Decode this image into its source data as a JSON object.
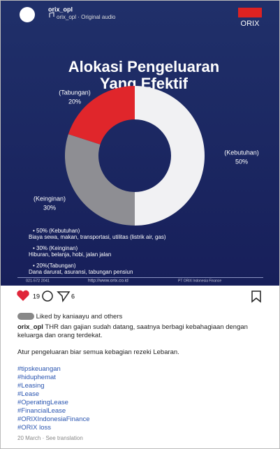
{
  "header": {
    "username": "orix_opl",
    "audio": "orix_opl · Original audio",
    "logo": "ORIX"
  },
  "chart_data": {
    "type": "donut",
    "title": "Alokasi Pengeluaran Yang Efektif",
    "categories": [
      "(Kebutuhan)",
      "(Keinginan)",
      "(Tabungan)"
    ],
    "values": [
      50,
      30,
      20
    ],
    "value_labels": [
      "50%",
      "30%",
      "20%"
    ],
    "colors": [
      "#f1f1f3",
      "#8e8e93",
      "#e0262b"
    ]
  },
  "bullets": [
    {
      "head": "• 50% (Kebutuhan)",
      "text": "Biaya sewa, makan, transportasi, utilitas (listrik air, gas)"
    },
    {
      "head": "• 30% (Keinginan)",
      "text": "Hiburan, belanja, hobi, jalan jalan"
    },
    {
      "head": "• 20%(Tabungan)",
      "text": "Dana darurat, asuransi, tabungan pensiun"
    }
  ],
  "footer": {
    "phone": "021-572 2041",
    "url": "http://www.orix.co.id",
    "company": "PT ORIX Indonesia Finance"
  },
  "actions": {
    "likes": "19",
    "shares": "6"
  },
  "liked_by": "Liked by kaniaayu and others",
  "caption": {
    "user": "orix_opl",
    "text": "THR dan gajian sudah datang, saatnya berbagi kebahagiaan dengan keluarga dan orang terdekat.",
    "second": "Atur pengeluaran biar semua kebagian rezeki Lebaran."
  },
  "hashtags": [
    "#tipskeuangan",
    "#hiduphemat",
    "#Leasing",
    "#Lease",
    "#OperatingLease",
    "#FinancialLease",
    "#ORIXIndonesiaFinance",
    "#ORIX loss"
  ],
  "date": "20 March · See translation"
}
